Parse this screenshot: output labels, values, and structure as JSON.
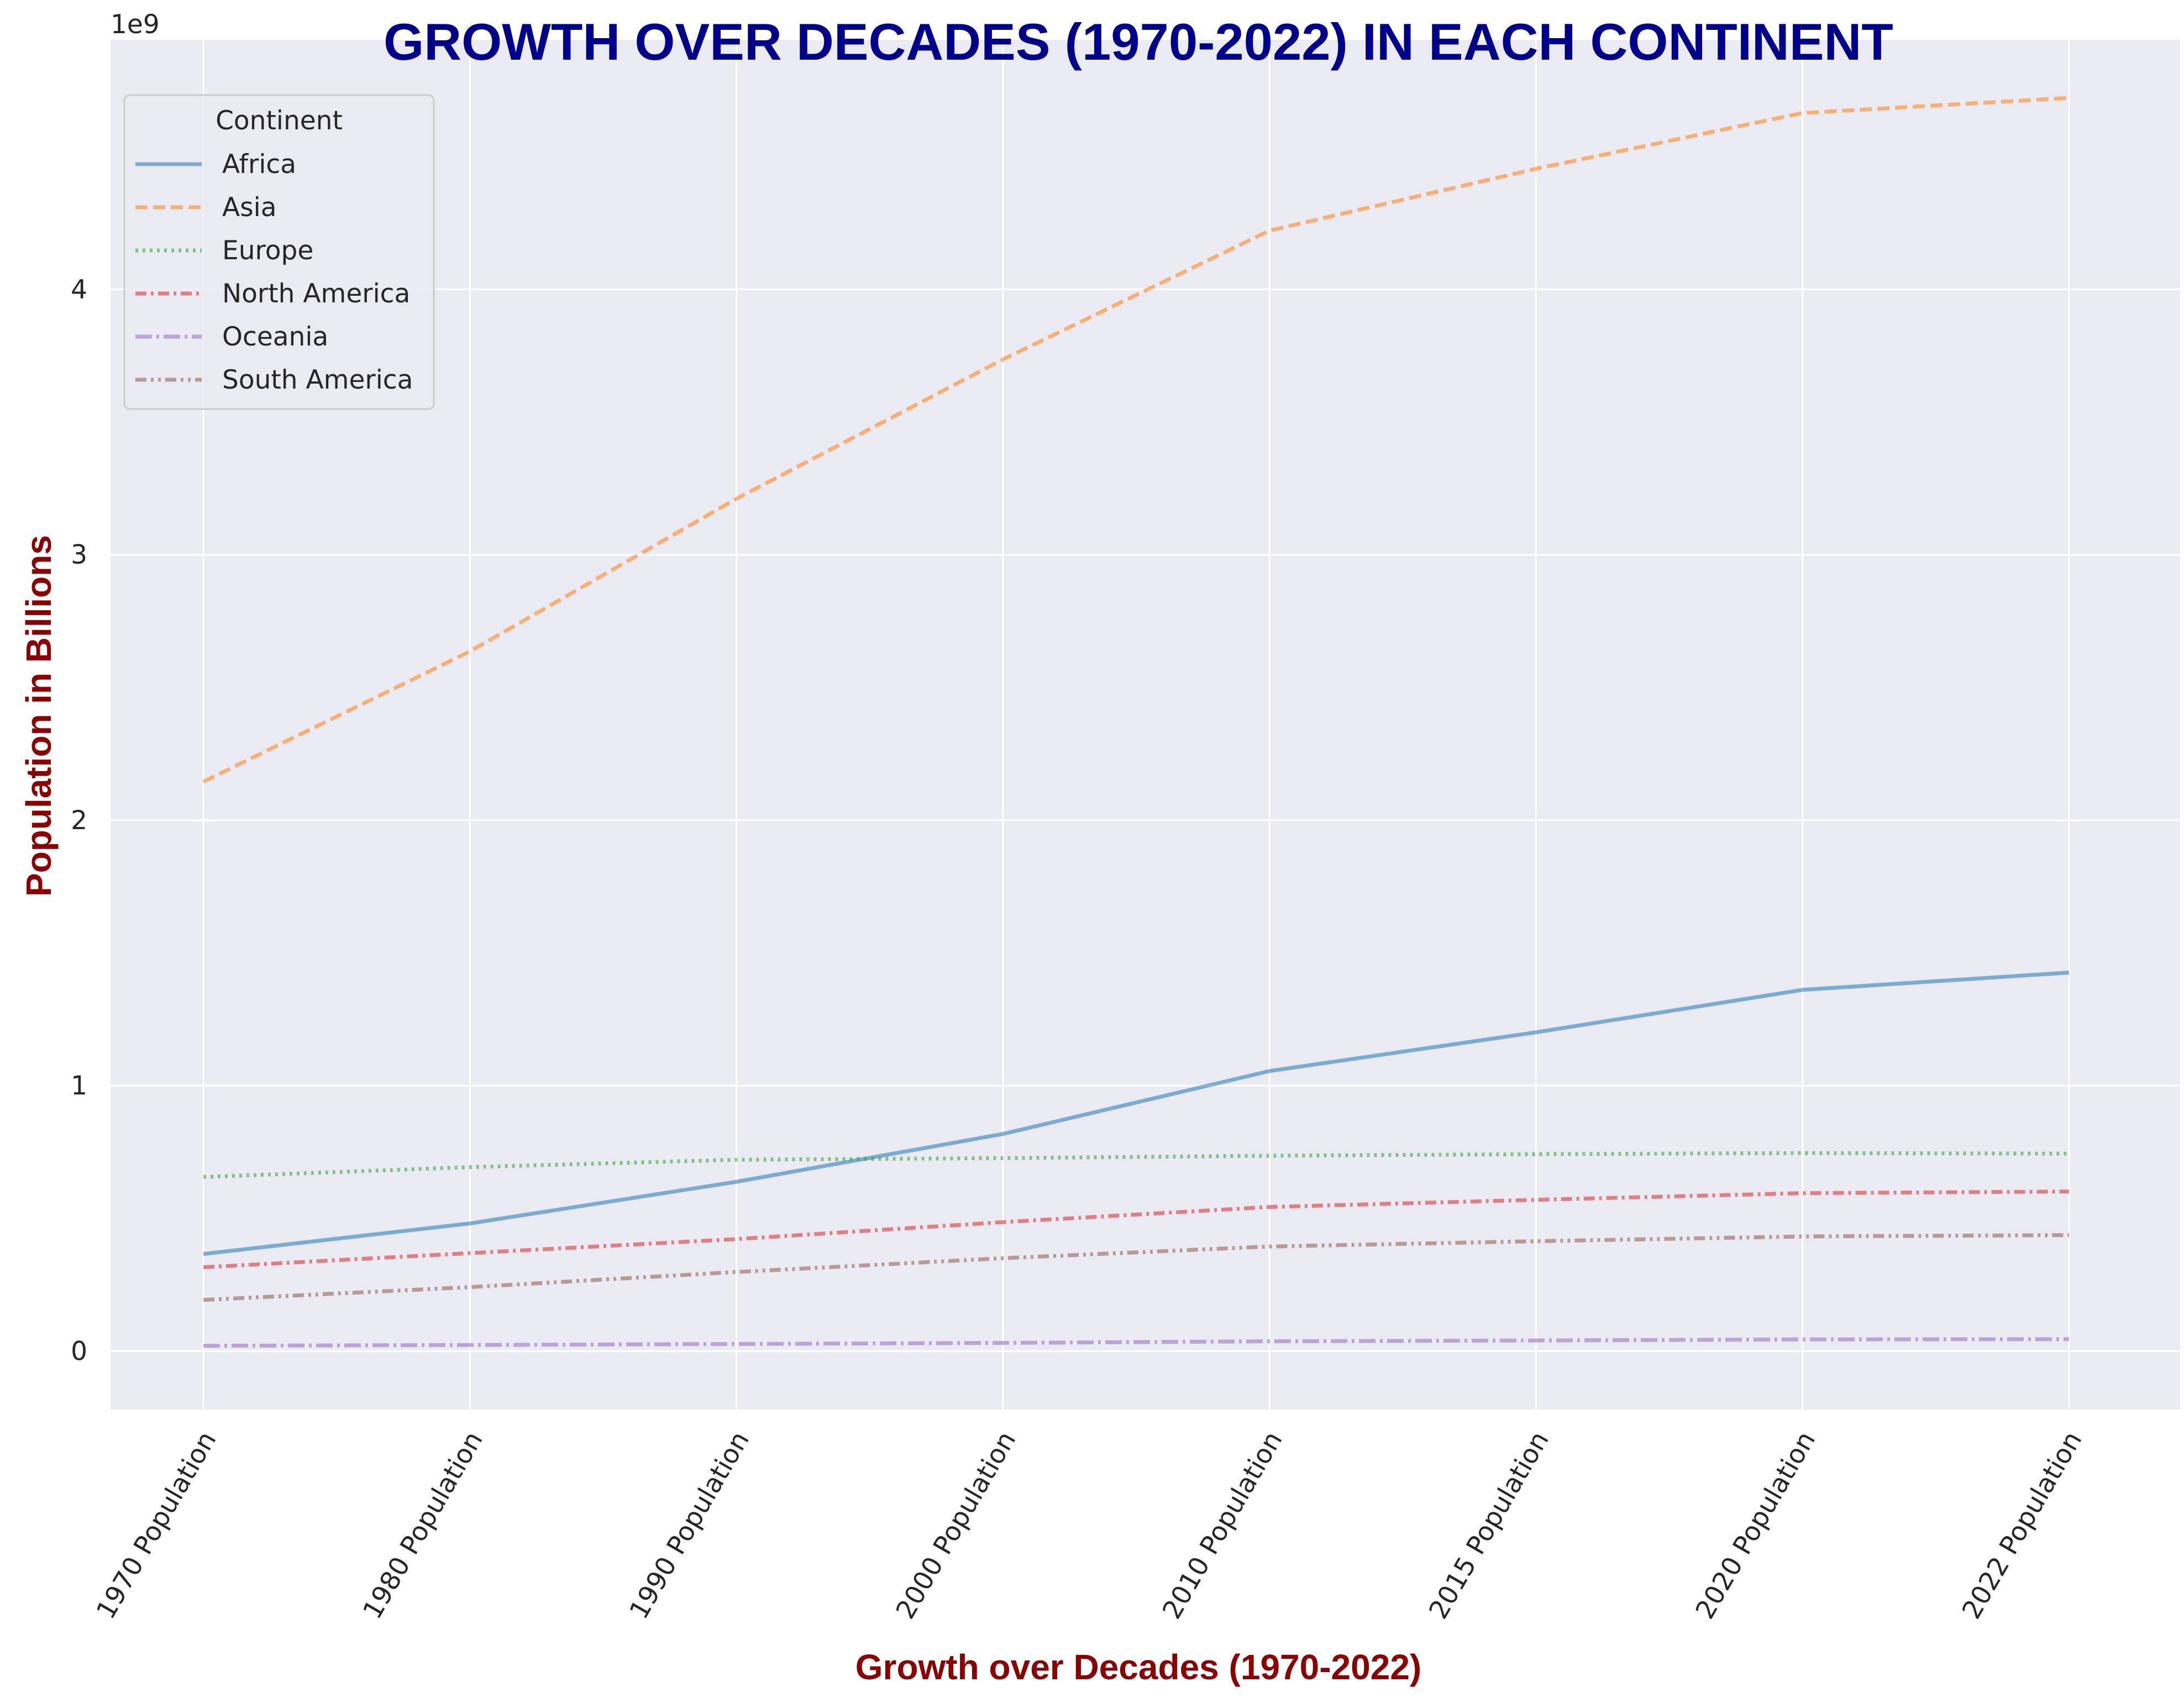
{
  "chart_data": {
    "type": "line",
    "title": "GROWTH OVER DECADES (1970-2022) IN EACH CONTINENT",
    "xlabel": "Growth over Decades (1970-2022)",
    "ylabel": "Population in Billions",
    "y_offset_label": "1e9",
    "categories": [
      "1970 Population",
      "1980 Population",
      "1990 Population",
      "2000 Population",
      "2010 Population",
      "2015 Population",
      "2020 Population",
      "2022 Population"
    ],
    "y_ticks": [
      0,
      1,
      2,
      3,
      4
    ],
    "y_tick_labels": [
      "0",
      "1",
      "2",
      "3",
      "4"
    ],
    "ylim": [
      -0.22,
      4.94
    ],
    "y_unit": "billions",
    "grid": true,
    "legend": {
      "title": "Continent",
      "placement": "upper-left"
    },
    "series": [
      {
        "name": "Africa",
        "color": "#1f77b4",
        "dash": "solid",
        "values": [
          0.366,
          0.481,
          0.638,
          0.818,
          1.055,
          1.201,
          1.361,
          1.426
        ]
      },
      {
        "name": "Asia",
        "color": "#ff7f0e",
        "dash": "dashed",
        "values": [
          2.145,
          2.636,
          3.211,
          3.736,
          4.221,
          4.454,
          4.664,
          4.721
        ]
      },
      {
        "name": "Europe",
        "color": "#2ca02c",
        "dash": "dotted",
        "values": [
          0.656,
          0.693,
          0.721,
          0.727,
          0.736,
          0.742,
          0.746,
          0.744
        ]
      },
      {
        "name": "North America",
        "color": "#d62728",
        "dash": "dashdot",
        "values": [
          0.316,
          0.369,
          0.422,
          0.486,
          0.543,
          0.57,
          0.595,
          0.601
        ]
      },
      {
        "name": "Oceania",
        "color": "#9467bd",
        "dash": "longdashdot",
        "values": [
          0.02,
          0.023,
          0.027,
          0.031,
          0.037,
          0.04,
          0.044,
          0.045
        ]
      },
      {
        "name": "South America",
        "color": "#8c564b",
        "dash": "dashdotdot",
        "values": [
          0.193,
          0.241,
          0.298,
          0.35,
          0.394,
          0.414,
          0.432,
          0.437
        ]
      }
    ],
    "colors": {
      "plot_background": "#eaeaf2",
      "grid": "#ffffff",
      "title": "#00008b",
      "axis_label": "#8b0000",
      "tick_text": "#262626"
    }
  }
}
